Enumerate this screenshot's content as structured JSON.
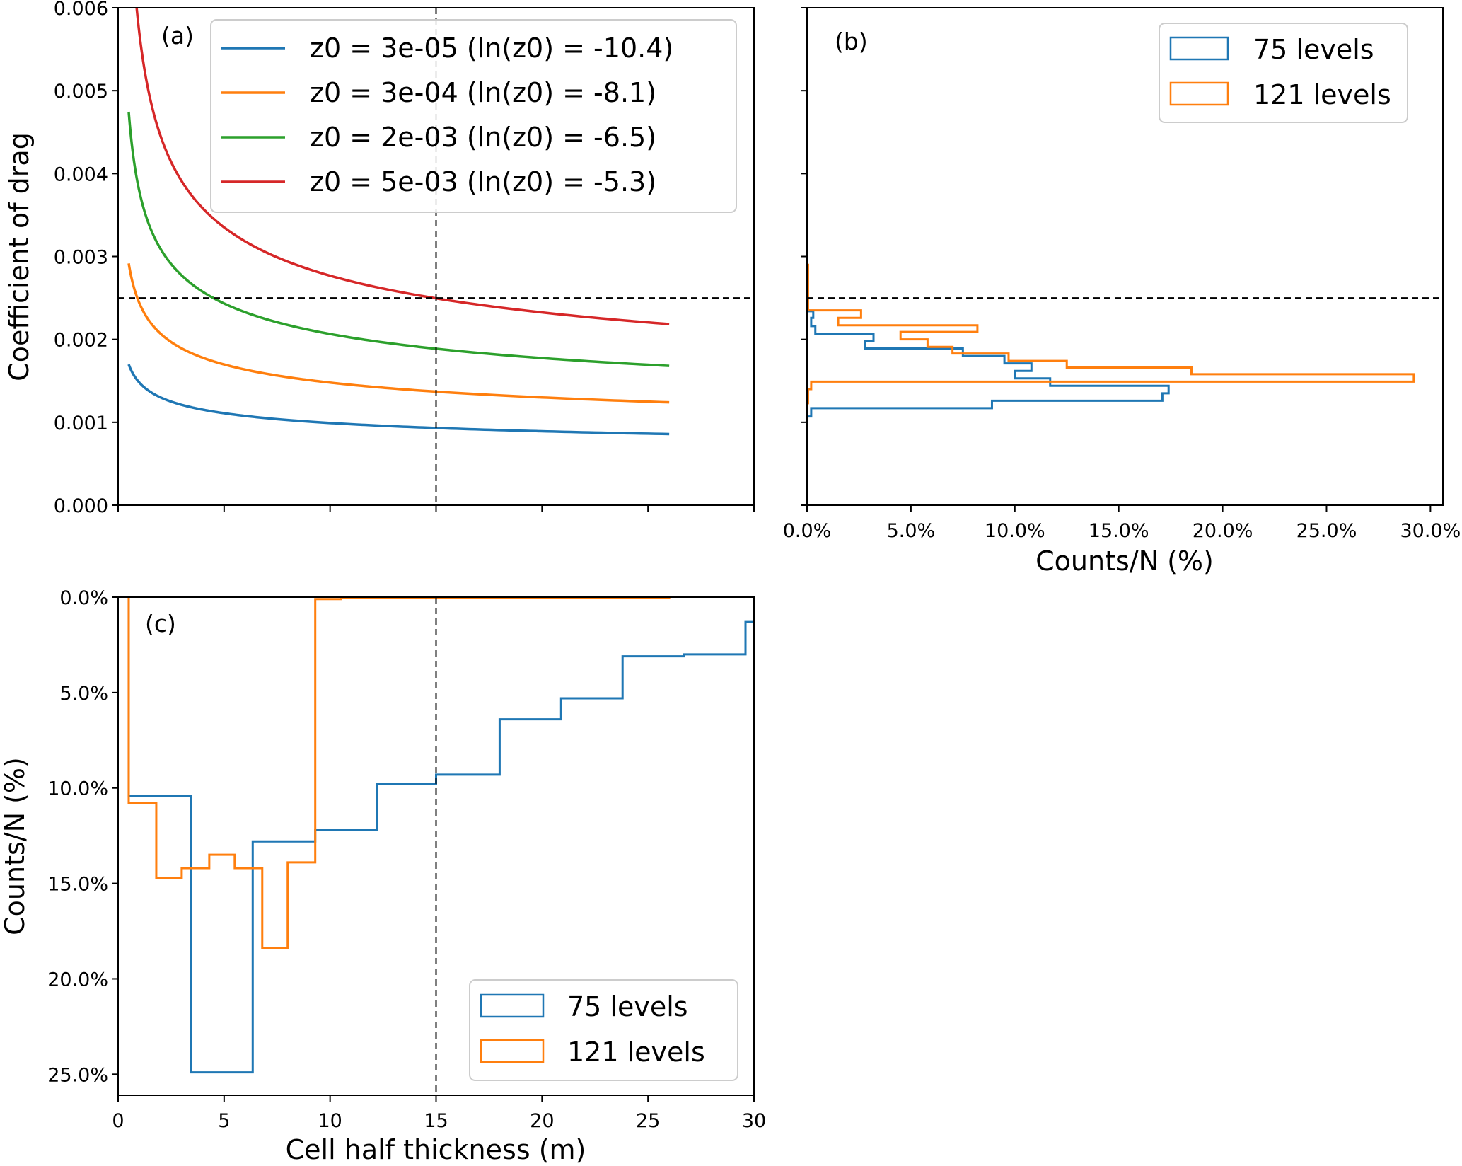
{
  "chart_data": [
    {
      "id": "a",
      "type": "line",
      "panel_label": "(a)",
      "xlabel": "",
      "ylabel": "Coefficient of drag",
      "xlim": [
        0,
        30
      ],
      "ylim": [
        0,
        0.006
      ],
      "xticks": [
        0,
        5,
        10,
        15,
        20,
        25,
        30
      ],
      "xtick_labels_visible": false,
      "yticks": [
        0.0,
        0.001,
        0.002,
        0.003,
        0.004,
        0.005,
        0.006
      ],
      "ytick_labels": [
        "0.000",
        "0.001",
        "0.002",
        "0.003",
        "0.004",
        "0.005",
        "0.006"
      ],
      "reference_lines": {
        "vertical_x": 15,
        "horizontal_y": 0.0025,
        "style": "dashed"
      },
      "legend_position": "top-right",
      "x": [
        0.5,
        1,
        2,
        3,
        5,
        7.5,
        10,
        15,
        20,
        26
      ],
      "series": [
        {
          "name": "z0 = 3e-05 (ln(z0) = -10.4)",
          "color": "#1f77b4",
          "ln_z0": -10.4,
          "values": [
            0.001698,
            0.001479,
            0.0013,
            0.00121,
            0.001109,
            0.001038,
            0.000992,
            0.000931,
            0.000892,
            0.000858
          ]
        },
        {
          "name": "z0 = 3e-04 (ln(z0) = -8.1)",
          "color": "#ff7f0e",
          "ln_z0": -8.1,
          "values": [
            0.002916,
            0.002439,
            0.002069,
            0.001891,
            0.001697,
            0.001564,
            0.001478,
            0.00137,
            0.0013,
            0.00124
          ]
        },
        {
          "name": "z0 = 2e-03 (ln(z0) = -6.5)",
          "color": "#2ca02c",
          "ln_z0": -6.5,
          "values": [
            0.004745,
            0.003787,
            0.003092,
            0.002771,
            0.002433,
            0.002207,
            0.002065,
            0.001887,
            0.001774,
            0.00168
          ]
        },
        {
          "name": "z0 = 5e-03 (ln(z0) = -5.3)",
          "color": "#d62728",
          "ln_z0": -5.3,
          "values": [
            0.007539,
            0.005696,
            0.004455,
            0.003908,
            0.003352,
            0.00299,
            0.002768,
            0.002495,
            0.002325,
            0.002185
          ]
        }
      ]
    },
    {
      "id": "b",
      "type": "bar",
      "orientation": "horizontal-step-histogram",
      "panel_label": "(b)",
      "xlabel": "Counts/N (%)",
      "ylabel": "",
      "xlim": [
        0,
        30.6
      ],
      "ylim": [
        0,
        0.006
      ],
      "xticks": [
        0,
        5,
        10,
        15,
        20,
        25,
        30
      ],
      "xtick_labels": [
        "0.0%",
        "5.0%",
        "10.0%",
        "15.0%",
        "20.0%",
        "25.0%",
        "30.0%"
      ],
      "ytick_labels_visible": false,
      "reference_lines": {
        "horizontal_y": 0.0025,
        "style": "dashed"
      },
      "legend_position": "top-right",
      "series": [
        {
          "name": "75 levels",
          "color": "#1f77b4",
          "bin_edges": [
            0.00107,
            0.00117,
            0.00126,
            0.00135,
            0.00144,
            0.00153,
            0.00162,
            0.00171,
            0.0018,
            0.00189,
            0.00198,
            0.00207,
            0.00216,
            0.00226,
            0.00234
          ],
          "values": [
            0.2,
            8.9,
            17.1,
            17.4,
            11.7,
            10.0,
            10.8,
            9.5,
            7.5,
            2.8,
            3.2,
            0.4,
            0.2,
            0.3
          ]
        },
        {
          "name": "121 levels",
          "color": "#ff7f0e",
          "bin_edges": [
            0.00123,
            0.0014,
            0.00149,
            0.00158,
            0.00166,
            0.00174,
            0.00183,
            0.00191,
            0.002,
            0.00209,
            0.00217,
            0.00226,
            0.00235,
            0.0029
          ],
          "values": [
            0.05,
            0.2,
            29.2,
            18.5,
            12.5,
            9.7,
            7.0,
            5.8,
            4.5,
            8.2,
            1.5,
            2.6,
            0.05
          ]
        }
      ]
    },
    {
      "id": "c",
      "type": "bar",
      "orientation": "inverted-step-histogram",
      "panel_label": "(c)",
      "xlabel": "Cell half thickness (m)",
      "ylabel": "Counts/N (%)",
      "xlim": [
        0,
        30
      ],
      "ylim": [
        26.1,
        0
      ],
      "xticks": [
        0,
        5,
        10,
        15,
        20,
        25,
        30
      ],
      "xtick_labels": [
        "0",
        "5",
        "10",
        "15",
        "20",
        "25",
        "30"
      ],
      "yticks": [
        0,
        5,
        10,
        15,
        20,
        25
      ],
      "ytick_labels": [
        "0.0%",
        "5.0%",
        "10.0%",
        "15.0%",
        "20.0%",
        "25.0%"
      ],
      "reference_lines": {
        "vertical_x": 15,
        "style": "dashed"
      },
      "legend_position": "bottom-right",
      "series": [
        {
          "name": "75 levels",
          "color": "#1f77b4",
          "bin_edges": [
            0.5,
            3.45,
            6.35,
            9.3,
            12.2,
            15.0,
            18.0,
            20.9,
            23.8,
            26.7,
            29.6,
            30
          ],
          "values": [
            10.4,
            24.9,
            12.8,
            12.2,
            9.8,
            9.3,
            6.4,
            5.3,
            3.1,
            3.0,
            1.3
          ]
        },
        {
          "name": "121 levels",
          "color": "#ff7f0e",
          "bin_edges": [
            0.5,
            1.8,
            3.0,
            4.3,
            5.5,
            6.8,
            8.0,
            9.3,
            10.5,
            26
          ],
          "values": [
            10.8,
            14.7,
            14.2,
            13.5,
            14.2,
            18.4,
            13.9,
            0.1,
            0.05
          ]
        }
      ]
    }
  ]
}
